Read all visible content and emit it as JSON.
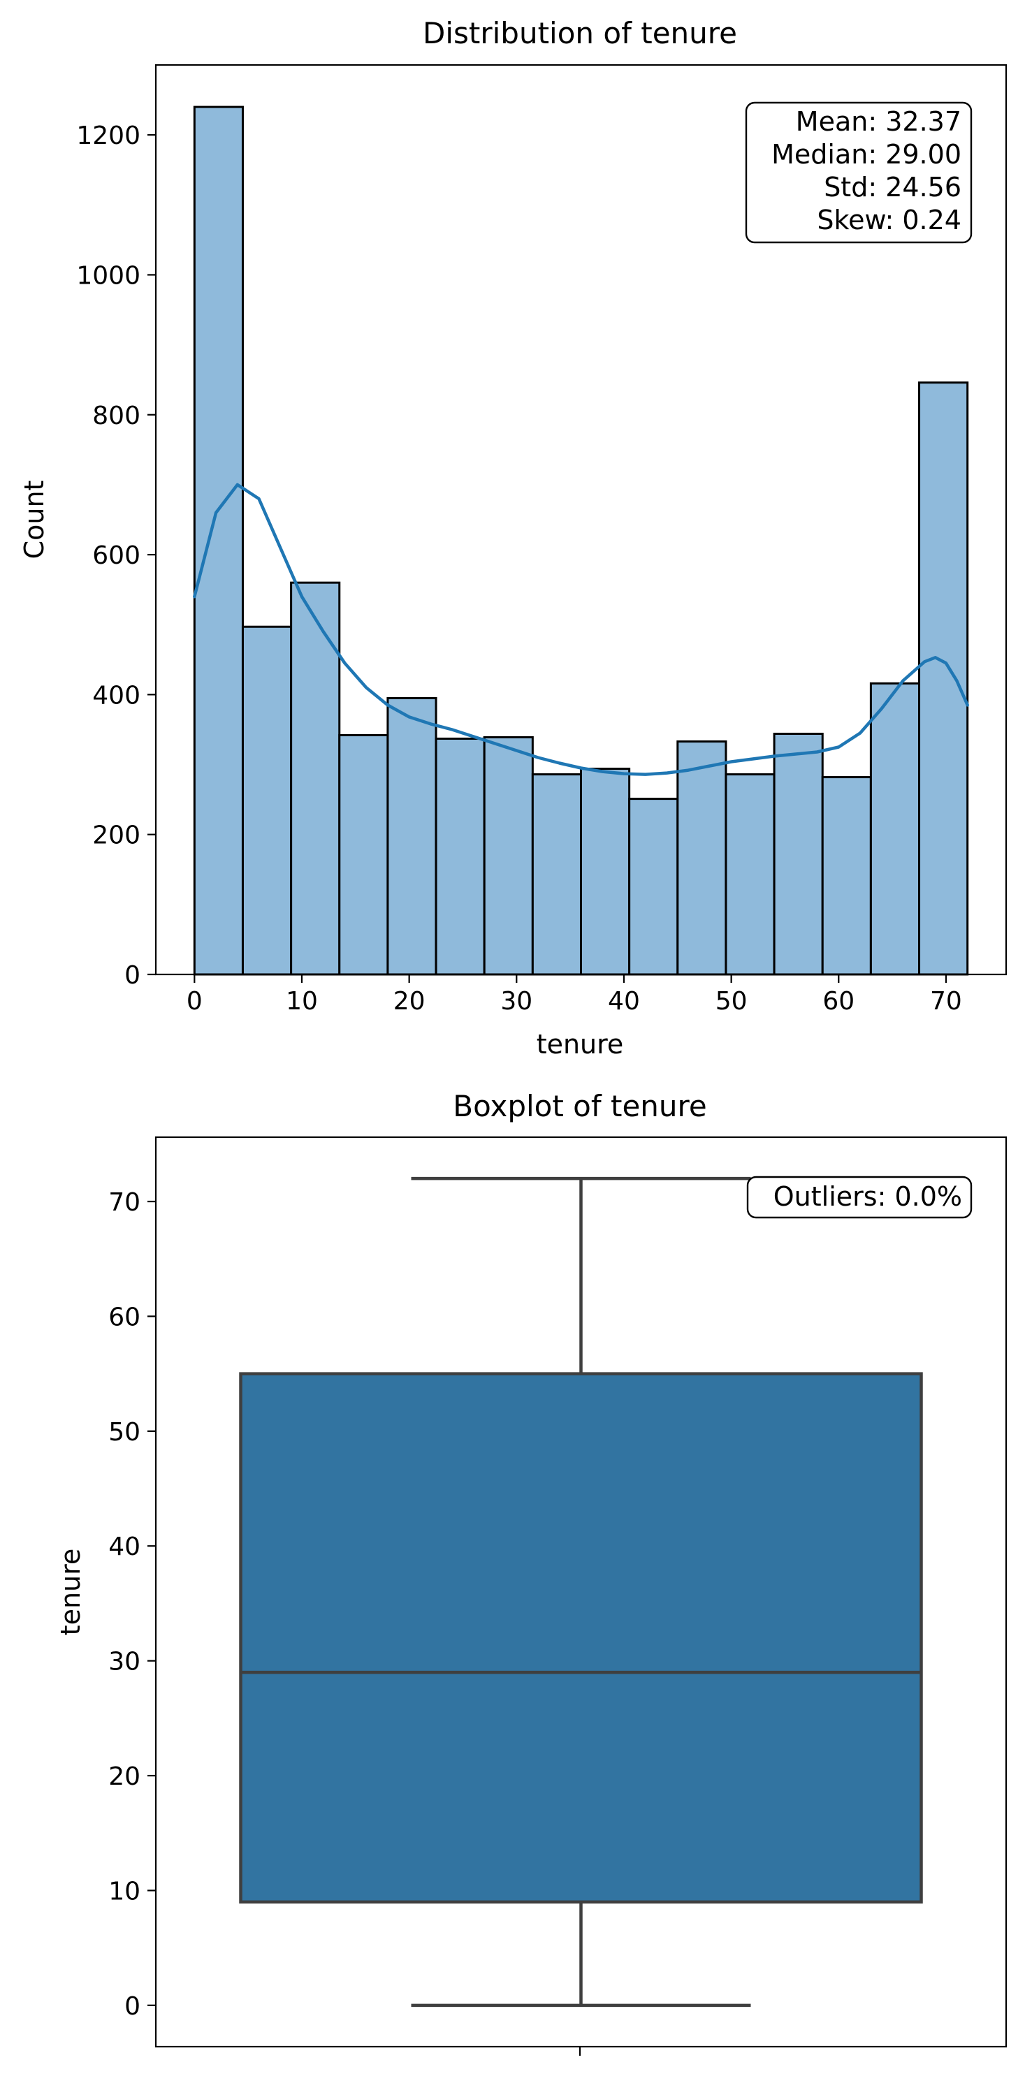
{
  "chart_data": [
    {
      "type": "bar",
      "title": "Distribution of tenure",
      "xlabel": "tenure",
      "ylabel": "Count",
      "xlim": [
        -3.6,
        75.6
      ],
      "ylim": [
        0,
        1300
      ],
      "x_ticks": [
        0,
        10,
        20,
        30,
        40,
        50,
        60,
        70
      ],
      "y_ticks": [
        0,
        200,
        400,
        600,
        800,
        1000,
        1200
      ],
      "bin_edges": [
        0,
        4.5,
        9,
        13.5,
        18,
        22.5,
        27,
        31.5,
        36,
        40.5,
        45,
        49.5,
        54,
        58.5,
        63,
        67.5,
        72
      ],
      "values": [
        1240,
        497,
        560,
        342,
        395,
        337,
        339,
        286,
        294,
        251,
        333,
        286,
        344,
        282,
        416,
        846
      ],
      "kde": {
        "x": [
          0,
          2,
          4,
          6,
          8,
          10,
          12,
          14,
          16,
          18,
          20,
          22,
          24,
          26,
          28,
          30,
          32,
          34,
          36,
          38,
          40,
          42,
          44,
          46,
          48,
          50,
          52,
          54,
          56,
          58,
          60,
          62,
          64,
          66,
          68,
          69,
          70,
          71,
          72
        ],
        "y": [
          540,
          660,
          700,
          680,
          610,
          540,
          490,
          445,
          410,
          385,
          368,
          358,
          350,
          340,
          330,
          320,
          310,
          302,
          295,
          290,
          287,
          286,
          288,
          292,
          298,
          304,
          308,
          312,
          315,
          318,
          325,
          345,
          380,
          420,
          447,
          453,
          445,
          420,
          385
        ]
      },
      "grid": false,
      "stats_box": {
        "lines": [
          "Mean: 32.37",
          "Median: 29.00",
          "Std: 24.56",
          "Skew: 0.24"
        ],
        "placement": "top-right"
      },
      "colors": {
        "bar_fill": "#8fbadb",
        "bar_edge": "#000000",
        "kde_line": "#1f77b4"
      }
    },
    {
      "type": "box",
      "title": "Boxplot of tenure",
      "ylabel": "tenure",
      "ylim": [
        -3.6,
        75.6
      ],
      "y_ticks": [
        0,
        10,
        20,
        30,
        40,
        50,
        60,
        70
      ],
      "box": {
        "whisker_low": 0,
        "q1": 9,
        "median": 29,
        "q3": 55,
        "whisker_high": 72
      },
      "outliers_label": "Outliers: 0.0%",
      "outliers_placement": "top-right",
      "grid": false,
      "colors": {
        "box_fill": "#3274a1",
        "box_edge": "#3f3f3f"
      }
    }
  ]
}
